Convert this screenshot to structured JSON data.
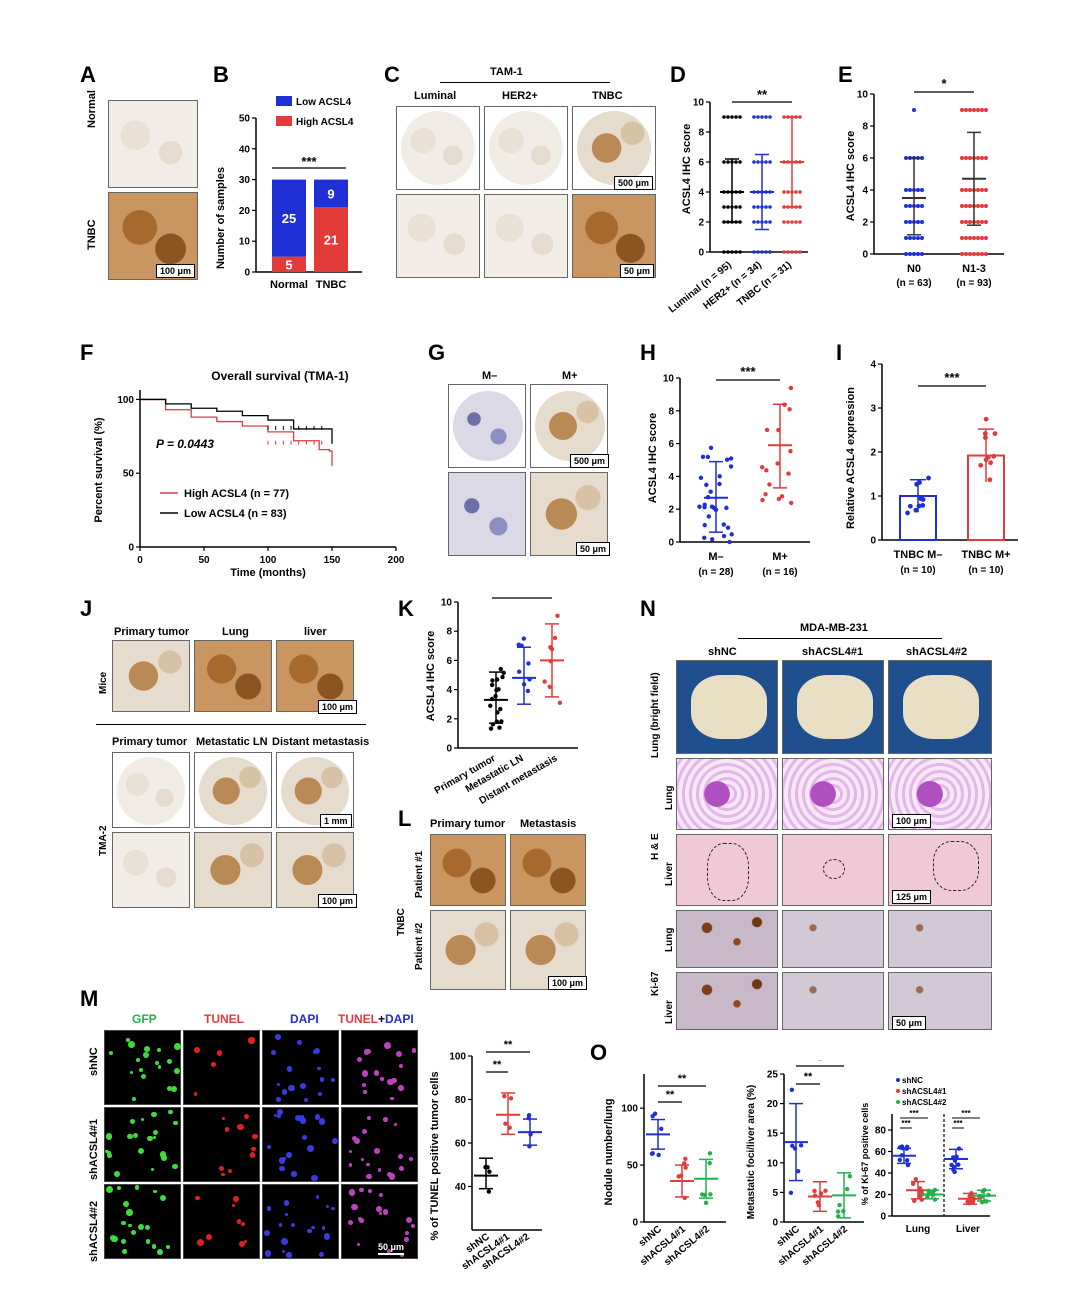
{
  "panels": {
    "A": {
      "label": "A",
      "rows": [
        "Normal",
        "TNBC"
      ],
      "scale": "100 μm"
    },
    "B": {
      "label": "B",
      "legend": [
        "Low ACSL4",
        "High ACSL4"
      ],
      "ylabel": "Number of samples",
      "sig": "***",
      "yticks": [
        "0",
        "10",
        "20",
        "30",
        "40",
        "50"
      ]
    },
    "C": {
      "label": "C",
      "group": "TAM-1",
      "cols": [
        "Luminal",
        "HER2+",
        "TNBC"
      ],
      "scale_top": "500 μm",
      "scale_bottom": "50 μm"
    },
    "D": {
      "label": "D",
      "ylabel": "ACSL4 IHC score",
      "sig": "**",
      "yticks": [
        "0",
        "2",
        "4",
        "6",
        "8",
        "10"
      ],
      "groups": [
        "Luminal (n = 95)",
        "HER2+ (n = 34)",
        "TNBC (n = 31)"
      ]
    },
    "E": {
      "label": "E",
      "ylabel": "ACSL4 IHC score",
      "sig": "*",
      "yticks": [
        "0",
        "2",
        "4",
        "6",
        "8",
        "10"
      ],
      "groups": [
        "N0",
        "N1-3"
      ],
      "ns": [
        "(n = 63)",
        "(n = 93)"
      ]
    },
    "F": {
      "label": "F",
      "title": "Overall survival (TMA-1)",
      "ylabel": "Percent survival (%)",
      "xlabel": "Time (months)",
      "pval": "P = 0.0443",
      "legend": [
        "High ACSL4 (n = 77)",
        "Low ACSL4 (n = 83)"
      ],
      "xticks": [
        "0",
        "50",
        "100",
        "150",
        "200"
      ],
      "yticks": [
        "0",
        "50",
        "100"
      ]
    },
    "G": {
      "label": "G",
      "cols": [
        "M–",
        "M+"
      ],
      "scale_top": "500 μm",
      "scale_bottom": "50 μm"
    },
    "H": {
      "label": "H",
      "ylabel": "ACSL4 IHC score",
      "sig": "***",
      "yticks": [
        "0",
        "2",
        "4",
        "6",
        "8",
        "10"
      ],
      "groups": [
        "M–",
        "M+"
      ],
      "ns": [
        "(n = 28)",
        "(n = 16)"
      ]
    },
    "I": {
      "label": "I",
      "ylabel": "Relative ACSL4 expression",
      "sig": "***",
      "yticks": [
        "0",
        "1",
        "2",
        "3",
        "4"
      ],
      "groups": [
        "TNBC M–",
        "TNBC M+"
      ],
      "ns": [
        "(n = 10)",
        "(n = 10)"
      ]
    },
    "J": {
      "label": "J",
      "cols_top": [
        "Primary tumor",
        "Lung",
        "liver"
      ],
      "row_top": "Mice",
      "cols_bottom": [
        "Primary tumor",
        "Metastatic LN",
        "Distant metastasis"
      ],
      "row_bottom": "TMA-2",
      "scale_top": "100 μm",
      "scale_mid": "1 mm",
      "scale_bottom": "100 μm"
    },
    "K": {
      "label": "K",
      "ylabel": "ACSL4 IHC score",
      "sig": "**",
      "yticks": [
        "0",
        "2",
        "4",
        "6",
        "8",
        "10"
      ],
      "groups": [
        "Primary tumor",
        "Metastatic LN",
        "Distant metastasis"
      ]
    },
    "L": {
      "label": "L",
      "cols": [
        "Primary tumor",
        "Metastasis"
      ],
      "rows": [
        "Patient #1",
        "Patient #2"
      ],
      "group": "TNBC",
      "scale": "100 μm"
    },
    "M": {
      "label": "M",
      "cols": [
        "GFP",
        "TUNEL",
        "DAPI",
        "TUNEL",
        "+",
        "DAPI"
      ],
      "rows": [
        "shNC",
        "shACSL4#1",
        "shACSL4#2"
      ],
      "scale": "50 μm",
      "ylabel": "% of TUNEL positive tumor cells",
      "sig": [
        "**",
        "**"
      ],
      "yticks": [
        "40",
        "60",
        "80",
        "100"
      ],
      "groups": [
        "shNC",
        "shACSL4#1",
        "shACSL4#2"
      ]
    },
    "N": {
      "label": "N",
      "group": "MDA-MB-231",
      "cols": [
        "shNC",
        "shACSL4#1",
        "shACSL4#2"
      ],
      "rows": [
        "Lung (bright field)",
        "Lung",
        "Liver",
        "Lung",
        "Liver"
      ],
      "row_groups": [
        "H & E",
        "Ki-67"
      ],
      "scale_1": "100 μm",
      "scale_2": "125 μm",
      "scale_3": "50 μm"
    },
    "O": {
      "label": "O",
      "plot1": {
        "ylabel": "Nodule number/lung",
        "sig": [
          "**",
          "**"
        ],
        "yticks": [
          "0",
          "50",
          "100"
        ]
      },
      "plot2": {
        "ylabel": "Metastatic foci/liver area (%)",
        "sig": [
          "**",
          "*"
        ],
        "yticks": [
          "0",
          "5",
          "10",
          "15",
          "20",
          "25"
        ]
      },
      "plot3": {
        "ylabel": "% of Ki-67 positive cells",
        "sig": [
          "***",
          "***",
          "***",
          "***"
        ],
        "yticks": [
          "0",
          "20",
          "40",
          "60",
          "80"
        ],
        "legend": [
          "shNC",
          "shACSL4#1",
          "shACSL4#2"
        ],
        "xgroups": [
          "Lung",
          "Liver"
        ]
      },
      "groups": [
        "shNC",
        "shACSL4#1",
        "shACSL4#2"
      ]
    }
  },
  "colors": {
    "blue": "#1f2fd6",
    "red": "#e33a3a",
    "green": "#22b14c",
    "black": "#000000"
  },
  "chart_data": [
    {
      "type": "bar",
      "panel": "B",
      "categories": [
        "Normal",
        "TNBC"
      ],
      "series": [
        {
          "name": "Low ACSL4",
          "values": [
            25,
            9
          ]
        },
        {
          "name": "High ACSL4",
          "values": [
            5,
            21
          ]
        }
      ],
      "ylabel": "Number of samples",
      "ylim": [
        0,
        50
      ]
    },
    {
      "type": "scatter",
      "panel": "D",
      "categories": [
        "Luminal (n = 95)",
        "HER2+ (n = 34)",
        "TNBC (n = 31)"
      ],
      "means": [
        4,
        4,
        6
      ],
      "sd_upper": [
        6.2,
        6.5,
        9
      ],
      "sd_lower": [
        2,
        1.5,
        3
      ],
      "ylabel": "ACSL4 IHC score",
      "ylim": [
        0,
        10
      ]
    },
    {
      "type": "scatter",
      "panel": "E",
      "categories": [
        "N0",
        "N1-3"
      ],
      "means": [
        3.5,
        4.7
      ],
      "sd_upper": [
        6,
        7.6
      ],
      "sd_lower": [
        1.2,
        1.8
      ],
      "ylabel": "ACSL4 IHC score",
      "ylim": [
        0,
        10
      ]
    },
    {
      "type": "line",
      "panel": "F",
      "series": [
        {
          "name": "High ACSL4 (n = 77)",
          "x": [
            0,
            20,
            40,
            60,
            80,
            100,
            120,
            140,
            148,
            150
          ],
          "y": [
            100,
            93,
            88,
            85,
            82,
            78,
            72,
            66,
            65,
            55
          ]
        },
        {
          "name": "Low ACSL4 (n = 83)",
          "x": [
            0,
            20,
            40,
            60,
            80,
            100,
            120,
            140,
            148,
            150
          ],
          "y": [
            100,
            97,
            94,
            92,
            89,
            86,
            80,
            80,
            80,
            70
          ]
        }
      ],
      "xlabel": "Time (months)",
      "ylabel": "Percent survival (%)",
      "xlim": [
        0,
        200
      ],
      "ylim": [
        0,
        100
      ]
    },
    {
      "type": "scatter",
      "panel": "H",
      "categories": [
        "M–",
        "M+"
      ],
      "means": [
        2.7,
        5.9
      ],
      "sd_upper": [
        4.9,
        8.4
      ],
      "sd_lower": [
        0.6,
        3.3
      ],
      "ylabel": "ACSL4 IHC score",
      "ylim": [
        0,
        10
      ]
    },
    {
      "type": "bar",
      "panel": "I",
      "categories": [
        "TNBC M–",
        "TNBC M+"
      ],
      "values": [
        1.0,
        1.92
      ],
      "sd": [
        0.37,
        0.6
      ],
      "ylabel": "Relative ACSL4 expression",
      "ylim": [
        0,
        4
      ]
    },
    {
      "type": "scatter",
      "panel": "K",
      "categories": [
        "Primary tumor",
        "Metastatic LN",
        "Distant metastasis"
      ],
      "means": [
        3.3,
        4.8,
        6.0
      ],
      "sd_upper": [
        5.2,
        6.9,
        8.5
      ],
      "sd_lower": [
        1.7,
        3.0,
        3.5
      ],
      "ylabel": "ACSL4 IHC score",
      "ylim": [
        0,
        10
      ]
    },
    {
      "type": "scatter",
      "panel": "M",
      "categories": [
        "shNC",
        "shACSL4#1",
        "shACSL4#2"
      ],
      "means": [
        45,
        73,
        65
      ],
      "sd_upper": [
        53,
        83,
        71
      ],
      "sd_lower": [
        39,
        64,
        59
      ],
      "ylabel": "% of TUNEL positive tumor cells",
      "ylim": [
        20,
        100
      ]
    },
    {
      "type": "scatter",
      "panel": "O1",
      "categories": [
        "shNC",
        "shACSL4#1",
        "shACSL4#2"
      ],
      "means": [
        77,
        36,
        38
      ],
      "ylabel": "Nodule number/lung",
      "ylim": [
        0,
        130
      ]
    },
    {
      "type": "scatter",
      "panel": "O2",
      "categories": [
        "shNC",
        "shACSL4#1",
        "shACSL4#2"
      ],
      "means": [
        13.5,
        4.3,
        4.5
      ],
      "ylabel": "Metastatic foci/liver area (%)",
      "ylim": [
        0,
        25
      ]
    },
    {
      "type": "scatter",
      "panel": "O3",
      "categories": [
        "Lung shNC",
        "Lung shACSL4#1",
        "Lung shACSL4#2",
        "Liver shNC",
        "Liver shACSL4#1",
        "Liver shACSL4#2"
      ],
      "means": [
        56,
        24,
        20,
        53,
        16,
        19
      ],
      "ylabel": "% of Ki-67 positive cells",
      "ylim": [
        0,
        80
      ]
    }
  ]
}
